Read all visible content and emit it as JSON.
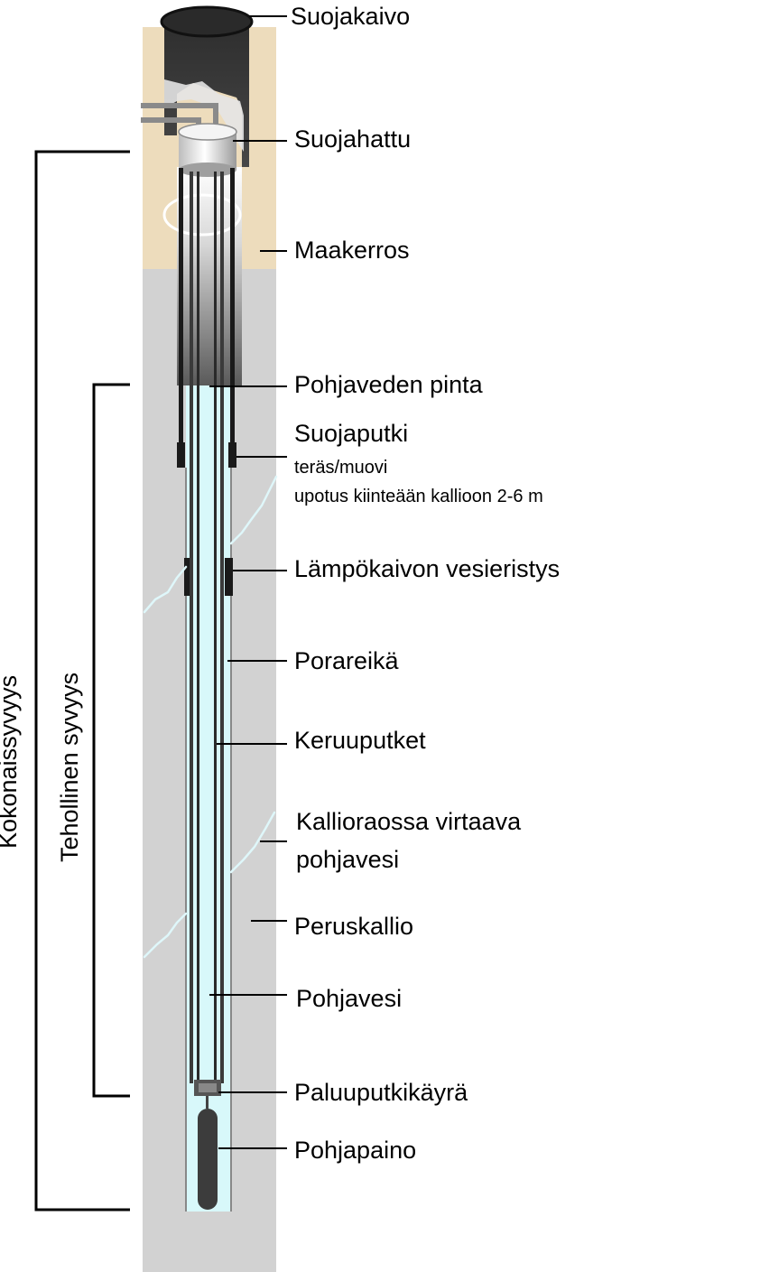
{
  "labels": {
    "suojakaivo": "Suojakaivo",
    "suojahattu": "Suojahattu",
    "maakerros": "Maakerros",
    "pohjaveden_pinta": "Pohjaveden pinta",
    "suojaputki": "Suojaputki",
    "suojaputki_material": "teräs/muovi",
    "suojaputki_depth": "upotus kiinteään kallioon 2-6 m",
    "vesieristys": "Lämpökaivon vesieristys",
    "porareika": "Porareikä",
    "keruuputket": "Keruuputket",
    "virtaava_line1": "Kallioraossa virtaava",
    "virtaava_line2": "pohjavesi",
    "peruskallio": "Peruskallio",
    "pohjavesi": "Pohjavesi",
    "paluuputkikayra": "Paluuputkikäyrä",
    "pohjapaino": "Pohjapaino",
    "kokonaissyvyys": "Kokonaissyvyys",
    "tehollinen_syvyys": "Tehollinen syvyys"
  },
  "colors": {
    "soil": "#eddcbc",
    "bedrock": "#d2d2d2",
    "water": "#d8f8fa",
    "casing": "#1a1a1a",
    "well_shaft": "#333333",
    "fracture": "#dff7fa"
  }
}
